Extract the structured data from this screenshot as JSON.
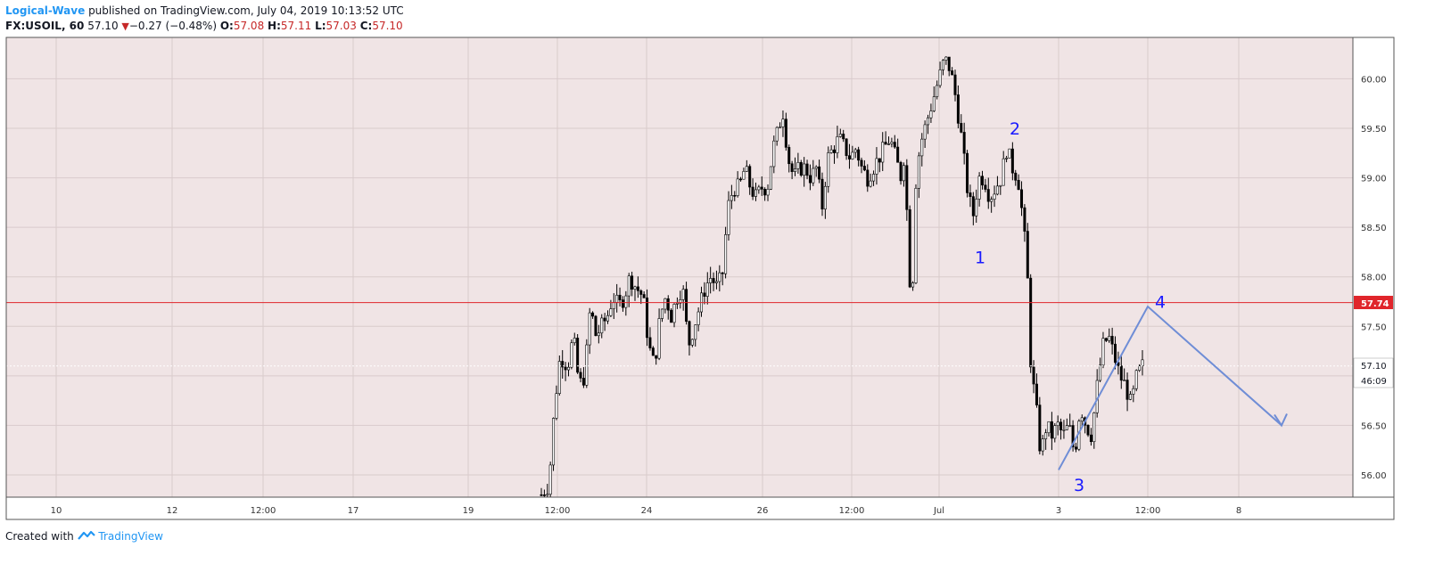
{
  "header": {
    "author": "Logical-Wave",
    "published": "published on TradingView.com, July 04, 2019 10:13:52 UTC",
    "symbol": "FX:USOIL, 60",
    "price": "57.10",
    "change_arrow": "▼",
    "change": "−0.27 (−0.48%)",
    "o_label": "O:",
    "o_value": "57.08",
    "h_label": "H:",
    "h_value": "57.11",
    "l_label": "L:",
    "l_value": "57.03",
    "c_label": "C:",
    "c_value": "57.10"
  },
  "footer": {
    "created_with": "Created with",
    "brand": "TradingView"
  },
  "colors": {
    "background": "#f0e4e5",
    "candle_up": "#ffffff",
    "candle_down": "#000000",
    "level_line": "#e0252b",
    "projection": "#6f8dd6",
    "wave_label": "#1a1aff"
  },
  "chart_data": {
    "type": "candlestick",
    "interval": "60",
    "ylim": [
      55.75,
      60.4
    ],
    "y_ticks": [
      56.0,
      56.5,
      57.0,
      57.5,
      58.0,
      58.5,
      59.0,
      59.5,
      60.0
    ],
    "y_tick_labels": [
      "56.00",
      "56.50",
      "",
      "57.50",
      "58.00",
      "58.50",
      "59.00",
      "59.50",
      "60.00"
    ],
    "x_tick_labels": [
      "10",
      "12",
      "12:00",
      "17",
      "19",
      "12:00",
      "24",
      "26",
      "12:00",
      "Jul",
      "3",
      "12:00",
      "8"
    ],
    "horizontal_level": {
      "value": 57.74,
      "label": "57.74"
    },
    "last_price": {
      "value": 57.1,
      "label": "57.10",
      "countdown": "46:09"
    },
    "path_points": [
      [
        0,
        55.8
      ],
      [
        8,
        55.9
      ],
      [
        14,
        56.7
      ],
      [
        20,
        57.2
      ],
      [
        28,
        57.1
      ],
      [
        34,
        57.4
      ],
      [
        40,
        56.9
      ],
      [
        46,
        57.0
      ],
      [
        52,
        57.7
      ],
      [
        58,
        57.4
      ],
      [
        64,
        57.5
      ],
      [
        70,
        57.6
      ],
      [
        76,
        57.8
      ],
      [
        82,
        57.7
      ],
      [
        88,
        57.8
      ],
      [
        94,
        58.0
      ],
      [
        100,
        57.9
      ],
      [
        108,
        57.8
      ],
      [
        114,
        57.3
      ],
      [
        120,
        57.1
      ],
      [
        126,
        57.6
      ],
      [
        132,
        57.8
      ],
      [
        138,
        57.6
      ],
      [
        144,
        57.8
      ],
      [
        150,
        57.9
      ],
      [
        156,
        57.3
      ],
      [
        162,
        57.5
      ],
      [
        168,
        57.7
      ],
      [
        174,
        57.9
      ],
      [
        180,
        58.0
      ],
      [
        186,
        57.9
      ],
      [
        192,
        58.0
      ],
      [
        198,
        58.7
      ],
      [
        204,
        58.9
      ],
      [
        210,
        58.9
      ],
      [
        216,
        59.1
      ],
      [
        222,
        58.9
      ],
      [
        228,
        58.8
      ],
      [
        234,
        58.9
      ],
      [
        240,
        58.9
      ],
      [
        246,
        59.3
      ],
      [
        252,
        59.5
      ],
      [
        256,
        59.7
      ],
      [
        262,
        59.2
      ],
      [
        268,
        59.0
      ],
      [
        274,
        59.1
      ],
      [
        280,
        59.1
      ],
      [
        286,
        59.0
      ],
      [
        292,
        59.1
      ],
      [
        298,
        58.7
      ],
      [
        304,
        59.2
      ],
      [
        310,
        59.3
      ],
      [
        316,
        59.4
      ],
      [
        322,
        59.3
      ],
      [
        328,
        59.2
      ],
      [
        334,
        59.3
      ],
      [
        340,
        59.1
      ],
      [
        346,
        59.0
      ],
      [
        352,
        59.1
      ],
      [
        358,
        59.2
      ],
      [
        364,
        59.3
      ],
      [
        370,
        59.4
      ],
      [
        376,
        59.2
      ],
      [
        382,
        59.0
      ],
      [
        386,
        59.3
      ],
      [
        390,
        58.0
      ],
      [
        394,
        57.9
      ],
      [
        398,
        59.1
      ],
      [
        404,
        59.4
      ],
      [
        410,
        59.6
      ],
      [
        416,
        59.8
      ],
      [
        422,
        60.0
      ],
      [
        428,
        60.2
      ],
      [
        434,
        60.1
      ],
      [
        440,
        59.8
      ],
      [
        446,
        59.4
      ],
      [
        452,
        58.9
      ],
      [
        458,
        58.6
      ],
      [
        464,
        59.0
      ],
      [
        470,
        59.0
      ],
      [
        476,
        58.8
      ],
      [
        482,
        58.9
      ],
      [
        488,
        59.0
      ],
      [
        494,
        59.3
      ],
      [
        500,
        59.1
      ],
      [
        506,
        59.0
      ],
      [
        512,
        58.5
      ],
      [
        516,
        58.0
      ],
      [
        520,
        57.0
      ],
      [
        524,
        56.8
      ],
      [
        530,
        56.2
      ],
      [
        536,
        56.5
      ],
      [
        542,
        56.4
      ],
      [
        548,
        56.5
      ],
      [
        554,
        56.4
      ],
      [
        560,
        56.5
      ],
      [
        566,
        56.2
      ],
      [
        572,
        56.7
      ],
      [
        578,
        56.5
      ],
      [
        584,
        56.4
      ],
      [
        590,
        56.9
      ],
      [
        596,
        57.3
      ],
      [
        602,
        57.4
      ],
      [
        608,
        57.2
      ],
      [
        614,
        57.0
      ],
      [
        620,
        56.9
      ],
      [
        626,
        56.7
      ],
      [
        632,
        57.0
      ],
      [
        638,
        57.1
      ]
    ],
    "wave_labels": [
      {
        "text": "1",
        "x": "Jul 1",
        "y": 58.2
      },
      {
        "text": "2",
        "x": "Jul 2",
        "y": 59.5
      },
      {
        "text": "3",
        "x": "Jul 3",
        "y": 55.9
      },
      {
        "text": "4",
        "x": "Jul 4",
        "y": 57.75
      }
    ],
    "projection": [
      [
        3.0,
        56.05
      ],
      [
        3.4,
        57.7
      ],
      [
        4.0,
        56.5
      ]
    ]
  }
}
